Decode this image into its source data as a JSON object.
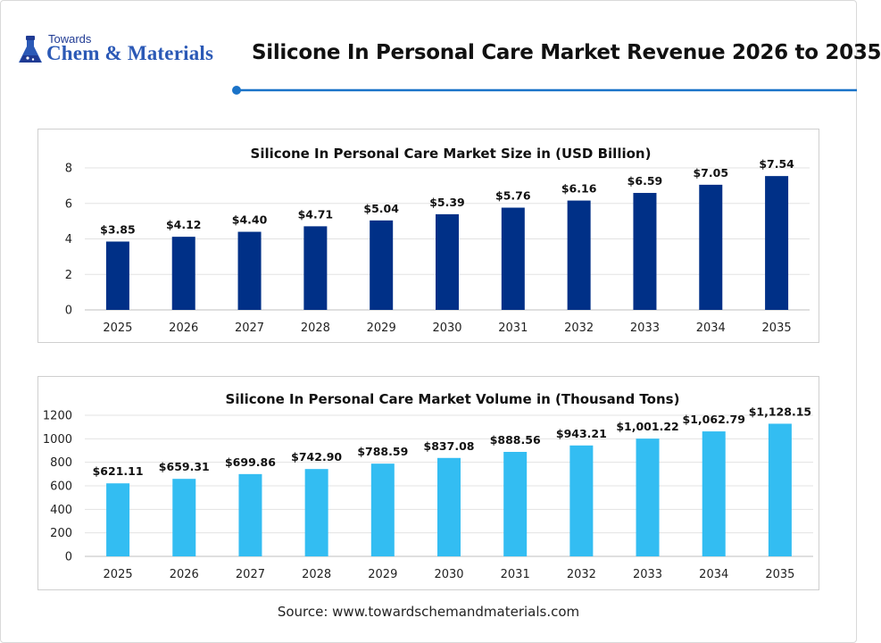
{
  "logo": {
    "top_text": "Towards",
    "main_text": "Chem & Materials"
  },
  "page_title": "Silicone In Personal Care Market Revenue 2026 to 2035",
  "source": "Source: www.towardschemandmaterials.com",
  "colors": {
    "accent": "#1a73c8",
    "bar_dark": "#003087",
    "bar_light": "#33bdf2"
  },
  "chart_data": [
    {
      "type": "bar",
      "title": "Silicone In Personal Care Market Size in (USD Billion)",
      "categories": [
        "2025",
        "2026",
        "2027",
        "2028",
        "2029",
        "2030",
        "2031",
        "2032",
        "2033",
        "2034",
        "2035"
      ],
      "values": [
        3.85,
        4.12,
        4.4,
        4.71,
        5.04,
        5.39,
        5.76,
        6.16,
        6.59,
        7.05,
        7.54
      ],
      "data_labels": [
        "$3.85",
        "$4.12",
        "$4.40",
        "$4.71",
        "$5.04",
        "$5.39",
        "$5.76",
        "$6.16",
        "$6.59",
        "$7.05",
        "$7.54"
      ],
      "ylim": [
        0,
        8
      ],
      "yticks": [
        0,
        2,
        4,
        6,
        8
      ],
      "ytick_labels": [
        "0",
        "2",
        "4",
        "6",
        "8"
      ],
      "grid": true,
      "color": "#003087"
    },
    {
      "type": "bar",
      "title": "Silicone In Personal Care Market Volume in (Thousand Tons)",
      "categories": [
        "2025",
        "2026",
        "2027",
        "2028",
        "2029",
        "2030",
        "2031",
        "2032",
        "2033",
        "2034",
        "2035"
      ],
      "values": [
        621.11,
        659.31,
        699.86,
        742.9,
        788.59,
        837.08,
        888.56,
        943.21,
        1001.22,
        1062.79,
        1128.15
      ],
      "data_labels": [
        "$621.11",
        "$659.31",
        "$699.86",
        "$742.90",
        "$788.59",
        "$837.08",
        "$888.56",
        "$943.21",
        "$1,001.22",
        "$1,062.79",
        "$1,128.15"
      ],
      "ylim": [
        0,
        1200
      ],
      "yticks": [
        0,
        200,
        400,
        600,
        800,
        1000,
        1200
      ],
      "ytick_labels": [
        "0",
        "200",
        "400",
        "600",
        "800",
        "1000",
        "1200"
      ],
      "grid": true,
      "color": "#33bdf2"
    }
  ]
}
